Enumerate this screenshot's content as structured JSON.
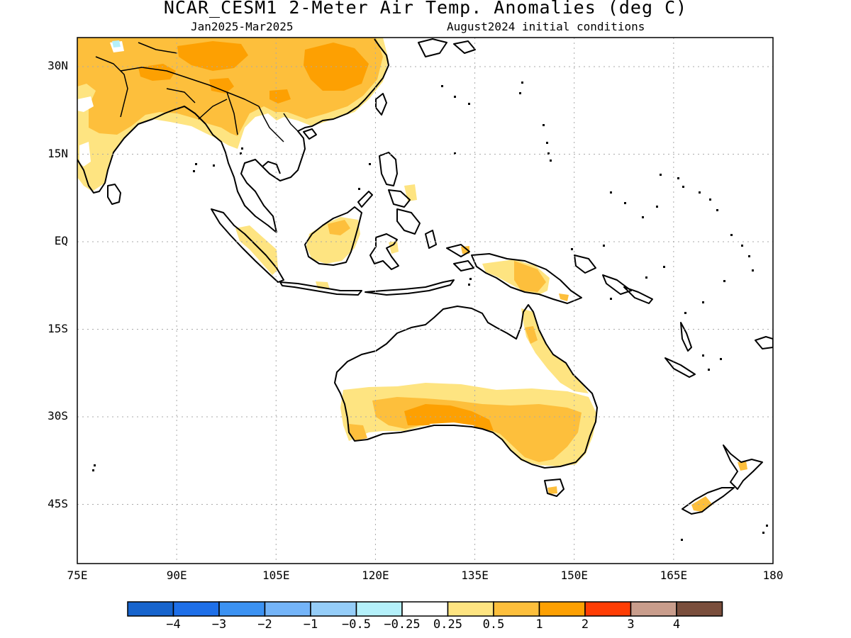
{
  "title": "NCAR_CESM1 2-Meter Air Temp. Anomalies (deg C)",
  "subtitle_left": "Jan2025-Mar2025",
  "subtitle_right": "August2024 initial conditions",
  "lat_labels": [
    "30N",
    "15N",
    "EQ",
    "15S",
    "30S",
    "45S"
  ],
  "lon_labels": [
    "75E",
    "90E",
    "105E",
    "120E",
    "135E",
    "150E",
    "165E",
    "180"
  ],
  "colorbar": {
    "colors": [
      "#1764cd",
      "#1e6fe8",
      "#3c92f2",
      "#74b4f8",
      "#95cdf8",
      "#b4f0fa",
      "#ffffff",
      "#fee481",
      "#fdbf3c",
      "#fda002",
      "#ff3d04",
      "#c99d8c",
      "#7a4e3c"
    ],
    "labels": [
      "-4",
      "-3",
      "-2",
      "-1",
      "-0.5",
      "-0.25",
      "0.25",
      "0.5",
      "1",
      "2",
      "3",
      "4"
    ]
  },
  "map_colors": {
    "light": "#fee481",
    "medium": "#fdbf3c",
    "dark": "#fda002",
    "coast": "#000000"
  }
}
